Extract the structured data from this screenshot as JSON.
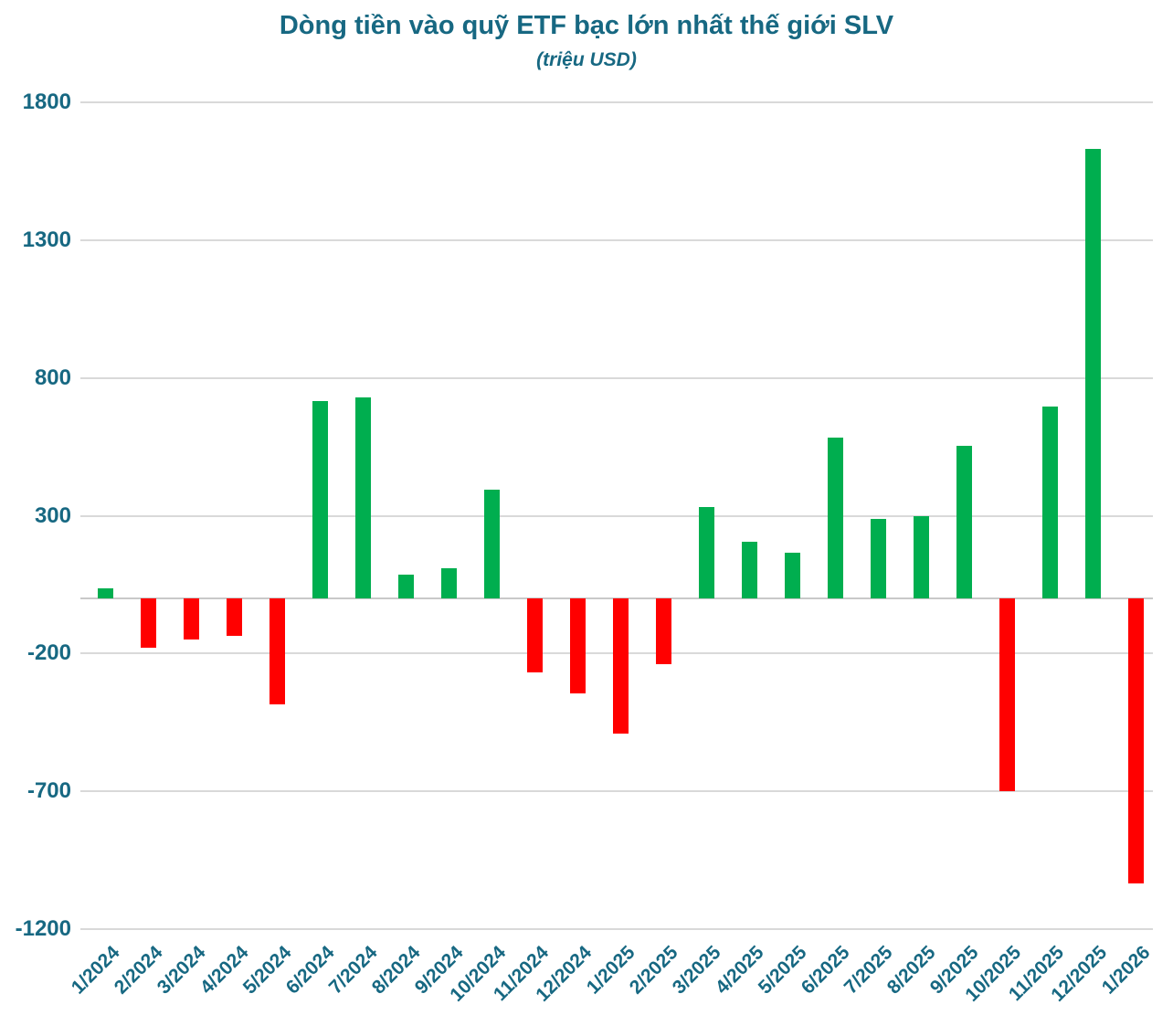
{
  "chart_data": {
    "type": "bar",
    "title": "Dòng tiền vào quỹ ETF bạc lớn nhất thế giới SLV",
    "subtitle": "(triệu USD)",
    "categories": [
      "1/2024",
      "2/2024",
      "3/2024",
      "4/2024",
      "5/2024",
      "6/2024",
      "7/2024",
      "8/2024",
      "9/2024",
      "10/2024",
      "11/2024",
      "12/2024",
      "1/2025",
      "2/2025",
      "3/2025",
      "4/2025",
      "5/2025",
      "6/2025",
      "7/2025",
      "8/2025",
      "9/2025",
      "10/2025",
      "11/2025",
      "12/2025",
      "1/2026"
    ],
    "values": [
      35,
      -180,
      -150,
      -135,
      -385,
      715,
      730,
      85,
      110,
      395,
      -270,
      -345,
      -490,
      -240,
      330,
      205,
      165,
      585,
      290,
      300,
      555,
      -700,
      695,
      1630,
      -1035
    ],
    "xlabel": "",
    "ylabel": "",
    "ylim": [
      -1200,
      1800
    ],
    "y_ticks": [
      1800,
      1300,
      800,
      300,
      -200,
      -700,
      -1200
    ],
    "grid": true,
    "legend": "none",
    "colors": {
      "positive": "#00AE4F",
      "negative": "#FF0000",
      "gridline": "#D9D9D9",
      "text": "#176882",
      "background": "#FFFFFF"
    }
  }
}
